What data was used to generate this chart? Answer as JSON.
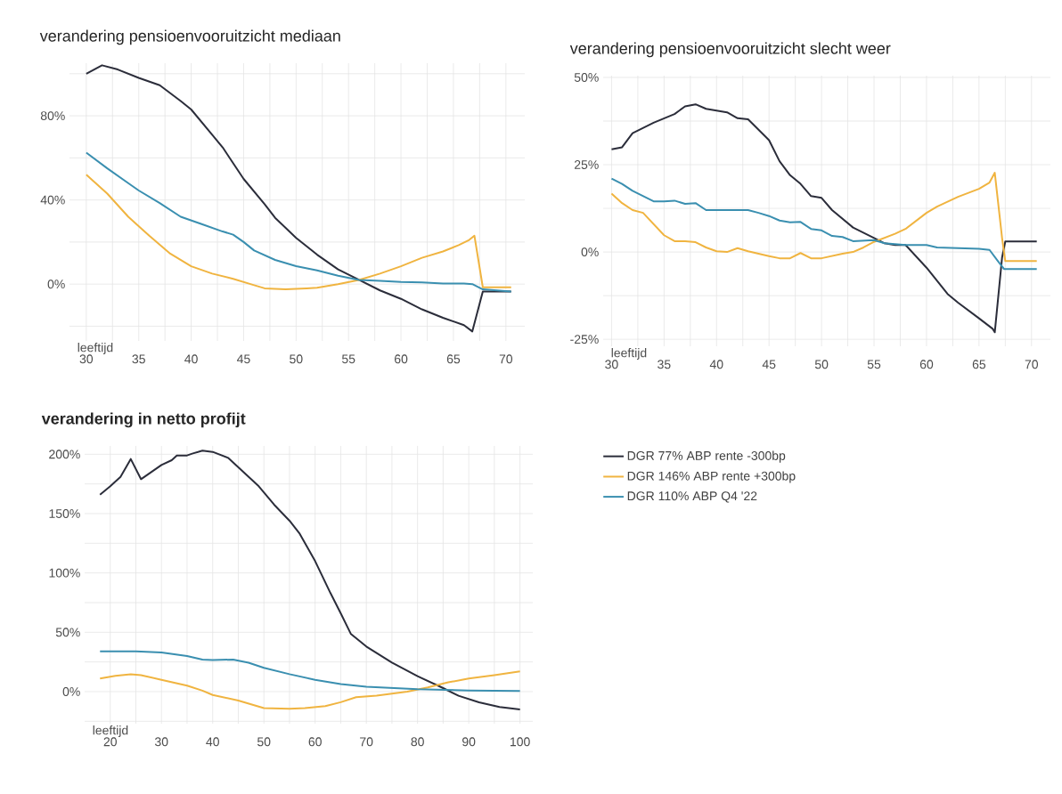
{
  "chart_data": [
    {
      "type": "line",
      "title": "verandering pensioenvooruitzicht mediaan",
      "xlabel": "leeftijd",
      "grid": true,
      "xlim": [
        28.4,
        71.8
      ],
      "ylim": [
        -27,
        105
      ],
      "xticks": [
        30,
        {
          "value": 32.5,
          "label": null
        },
        35,
        {
          "value": 37.5,
          "label": null
        },
        40,
        {
          "value": 42.5,
          "label": null
        },
        45,
        {
          "value": 47.5,
          "label": null
        },
        50,
        {
          "value": 52.5,
          "label": null
        },
        55,
        {
          "value": 57.5,
          "label": null
        },
        60,
        {
          "value": 62.5,
          "label": null
        },
        65,
        {
          "value": 67.5,
          "label": null
        },
        70
      ],
      "yticks": [
        {
          "value": -20,
          "label": null
        },
        {
          "value": 0,
          "label": "0%"
        },
        {
          "value": 20,
          "label": null
        },
        {
          "value": 40,
          "label": "40%"
        },
        {
          "value": 60,
          "label": null
        },
        {
          "value": 80,
          "label": "80%"
        },
        {
          "value": 100,
          "label": null
        }
      ],
      "series": [
        {
          "color": "#2b2d3a",
          "x": [
            30,
            31.5,
            33,
            35,
            37,
            39,
            40,
            42,
            43,
            45,
            47,
            48,
            50,
            52,
            54,
            56,
            58,
            60,
            62,
            64,
            66,
            66.8,
            67.8,
            70.5
          ],
          "values": [
            100,
            104,
            102,
            98,
            94.5,
            87,
            83,
            71,
            65,
            50,
            38,
            31.5,
            22,
            14,
            7,
            2,
            -3,
            -7,
            -12,
            -16,
            -19.5,
            -22.5,
            -3.5,
            -3.5
          ]
        },
        {
          "color": "#f0b440",
          "x": [
            30,
            32,
            34,
            36,
            38,
            40,
            42,
            44,
            46,
            47,
            49,
            51,
            52,
            54,
            56,
            58,
            60,
            62,
            64,
            65.5,
            66.5,
            67,
            67.8,
            70.5
          ],
          "values": [
            52,
            43,
            32,
            23,
            14.5,
            8.5,
            5,
            2.5,
            -0.5,
            -2,
            -2.5,
            -2,
            -1.7,
            0,
            2,
            5,
            8.5,
            12.5,
            15.5,
            18.5,
            21,
            23,
            -1.5,
            -1.5
          ]
        },
        {
          "color": "#3a8fb0",
          "x": [
            30,
            32,
            34,
            35,
            37,
            39,
            41,
            43,
            44,
            45,
            46,
            48,
            50,
            52,
            54,
            56,
            58,
            60,
            62,
            64,
            66,
            66.8,
            67.8,
            70.5
          ],
          "values": [
            62.5,
            55,
            48,
            44.5,
            38.5,
            32,
            28.5,
            25,
            23.5,
            20,
            16,
            11.5,
            8.5,
            6.5,
            4,
            2,
            1.5,
            1,
            0.8,
            0.3,
            0.3,
            0,
            -2.5,
            -3.5
          ]
        }
      ]
    },
    {
      "type": "line",
      "title": "verandering pensioenvooruitzicht slecht weer",
      "xlabel": "leeftijd",
      "grid": true,
      "xlim": [
        29.2,
        71.8
      ],
      "ylim": [
        -27,
        50.5
      ],
      "xticks": [
        30,
        {
          "value": 32.5,
          "label": null
        },
        35,
        {
          "value": 37.5,
          "label": null
        },
        40,
        {
          "value": 42.5,
          "label": null
        },
        45,
        {
          "value": 47.5,
          "label": null
        },
        50,
        {
          "value": 52.5,
          "label": null
        },
        55,
        {
          "value": 57.5,
          "label": null
        },
        60,
        {
          "value": 62.5,
          "label": null
        },
        65,
        {
          "value": 67.5,
          "label": null
        },
        70
      ],
      "yticks": [
        {
          "value": -25,
          "label": "-25%"
        },
        {
          "value": -12.5,
          "label": null
        },
        {
          "value": 0,
          "label": "0%"
        },
        {
          "value": 12.5,
          "label": null
        },
        {
          "value": 25,
          "label": "25%"
        },
        {
          "value": 37.5,
          "label": null
        },
        {
          "value": 50,
          "label": "50%"
        }
      ],
      "series": [
        {
          "color": "#2b2d3a",
          "x": [
            30,
            31,
            32,
            34,
            36,
            37,
            38,
            39,
            40,
            41,
            42,
            43,
            44,
            45,
            46,
            47,
            48,
            49,
            50,
            51,
            52,
            53,
            55,
            56,
            57,
            58,
            60,
            62,
            63,
            65,
            66.3,
            66.5,
            67.2,
            67.5,
            70.5
          ],
          "values": [
            29.4,
            30,
            34,
            37,
            39.5,
            41.7,
            42.3,
            41,
            40.5,
            40,
            38.3,
            38,
            35,
            32,
            26,
            22,
            19.5,
            16,
            15.5,
            12,
            9.5,
            7,
            4,
            2.5,
            2,
            2,
            -4.5,
            -12,
            -14.5,
            -19,
            -22,
            -23,
            -1.5,
            3,
            3
          ]
        },
        {
          "color": "#f0b440",
          "x": [
            30,
            31,
            32,
            33,
            35,
            36,
            37,
            38,
            39,
            40,
            41,
            42,
            43,
            45,
            46,
            47,
            48,
            49,
            50,
            52,
            53,
            54,
            55,
            57,
            58,
            60,
            61,
            63,
            65,
            66,
            66.5,
            67.2,
            67.5,
            70.5
          ],
          "values": [
            16.7,
            14,
            12,
            11.2,
            4.8,
            3.1,
            3.1,
            2.8,
            1.3,
            0.2,
            0,
            1.1,
            0.2,
            -1.2,
            -1.8,
            -1.8,
            -0.3,
            -1.8,
            -1.8,
            -0.5,
            0,
            1.3,
            2.9,
            5.2,
            6.6,
            11.2,
            13,
            15.8,
            18.1,
            19.9,
            22.7,
            3.9,
            -2.6,
            -2.6
          ]
        },
        {
          "color": "#3a8fb0",
          "x": [
            30,
            31,
            32,
            34,
            35,
            36,
            37,
            38,
            39,
            41,
            43,
            44,
            45,
            46,
            47,
            48,
            49,
            50,
            51,
            52,
            53,
            55,
            56,
            58,
            60,
            61,
            63,
            65,
            66,
            66.8,
            67.4,
            70.5
          ],
          "values": [
            21,
            19.5,
            17.5,
            14.5,
            14.5,
            14.7,
            13.8,
            14,
            12,
            12,
            12,
            11.2,
            10.3,
            9,
            8.5,
            8.6,
            6.6,
            6.2,
            4.6,
            4.3,
            3.1,
            3.4,
            2.5,
            2,
            2,
            1.3,
            1.1,
            0.9,
            0.6,
            -2.6,
            -4.9,
            -4.9
          ]
        }
      ]
    },
    {
      "type": "line",
      "title": "verandering in netto profijt",
      "xlabel": "leeftijd",
      "grid": true,
      "legend": "right",
      "xlim": [
        15,
        102.5
      ],
      "ylim": [
        -27,
        207
      ],
      "xticks": [
        20,
        {
          "value": 25,
          "label": null
        },
        30,
        {
          "value": 35,
          "label": null
        },
        40,
        {
          "value": 45,
          "label": null
        },
        50,
        {
          "value": 55,
          "label": null
        },
        60,
        {
          "value": 65,
          "label": null
        },
        70,
        {
          "value": 75,
          "label": null
        },
        80,
        {
          "value": 85,
          "label": null
        },
        90,
        {
          "value": 95,
          "label": null
        },
        100
      ],
      "yticks": [
        {
          "value": -25,
          "label": null
        },
        {
          "value": 0,
          "label": "0%"
        },
        {
          "value": 25,
          "label": null
        },
        {
          "value": 50,
          "label": "50%"
        },
        {
          "value": 75,
          "label": null
        },
        {
          "value": 100,
          "label": "100%"
        },
        {
          "value": 125,
          "label": null
        },
        {
          "value": 150,
          "label": "150%"
        },
        {
          "value": 175,
          "label": null
        },
        {
          "value": 200,
          "label": "200%"
        }
      ],
      "series": [
        {
          "name": "DGR 77% ABP rente -300bp",
          "color": "#2b2d3a",
          "x": [
            18,
            20,
            22,
            24,
            26,
            28,
            30,
            32,
            33,
            35,
            36,
            38,
            40,
            43,
            46,
            49,
            52,
            55,
            57,
            60,
            63,
            65,
            67,
            70,
            75,
            80,
            85,
            88,
            92,
            96,
            100
          ],
          "values": [
            166,
            173,
            181,
            196,
            179,
            185,
            191,
            195,
            199,
            199,
            200.5,
            203,
            202,
            197,
            185,
            173,
            157.5,
            144,
            133,
            110,
            83,
            66,
            48.5,
            38,
            24.5,
            13,
            3,
            -3.5,
            -9,
            -13,
            -15
          ]
        },
        {
          "name": "DGR 146% ABP rente +300bp",
          "color": "#f0b440",
          "x": [
            18,
            21,
            24,
            26,
            30,
            35,
            38,
            40,
            45,
            50,
            55,
            58,
            62,
            65,
            68,
            72,
            78,
            82,
            86,
            90,
            95,
            100
          ],
          "values": [
            11,
            13.3,
            14.7,
            13.9,
            10,
            5,
            0.8,
            -2.8,
            -7.5,
            -13.9,
            -14.4,
            -13.9,
            -12.2,
            -8.9,
            -4.7,
            -3.3,
            0,
            3.6,
            7.8,
            11,
            13.9,
            17
          ]
        },
        {
          "name": "DGR 110% ABP Q4 '22",
          "color": "#3a8fb0",
          "x": [
            18,
            25,
            30,
            35,
            38,
            40,
            44,
            47,
            50,
            55,
            60,
            65,
            70,
            80,
            90,
            100
          ],
          "values": [
            34,
            34,
            33,
            30,
            27,
            26.6,
            27,
            24.4,
            20,
            14.7,
            10,
            6.4,
            4.2,
            2,
            1,
            0.5
          ]
        }
      ]
    }
  ]
}
